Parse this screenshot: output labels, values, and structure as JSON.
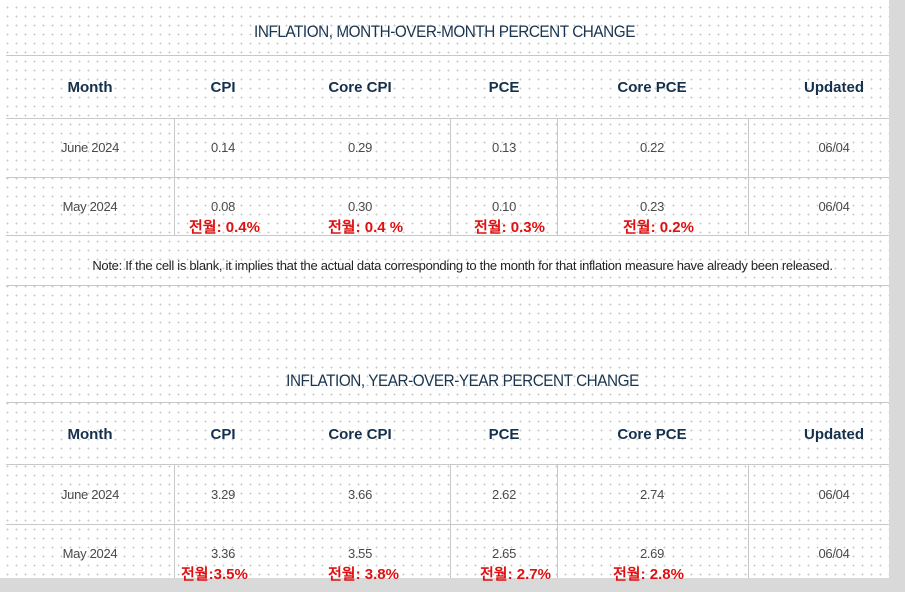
{
  "mom_table": {
    "title": "INFLATION, MONTH-OVER-MONTH PERCENT CHANGE",
    "headers": [
      "Month",
      "CPI",
      "Core CPI",
      "PCE",
      "Core PCE",
      "Updated"
    ],
    "rows": [
      [
        "June 2024",
        "0.14",
        "0.29",
        "0.13",
        "0.22",
        "06/04"
      ],
      [
        "May 2024",
        "0.08",
        "0.30",
        "0.10",
        "0.23",
        "06/04"
      ]
    ],
    "annotations": [
      "전월: 0.4%",
      "전월: 0.4 %",
      "전월: 0.3%",
      "전월: 0.2%"
    ],
    "note": "Note: If the cell is blank, it implies that the actual data corresponding to the month for that inflation measure have already been released."
  },
  "yoy_table": {
    "title": "INFLATION, YEAR-OVER-YEAR PERCENT CHANGE",
    "headers": [
      "Month",
      "CPI",
      "Core CPI",
      "PCE",
      "Core PCE",
      "Updated"
    ],
    "rows": [
      [
        "June 2024",
        "3.29",
        "3.66",
        "2.62",
        "2.74",
        "06/04"
      ],
      [
        "May 2024",
        "3.36",
        "3.55",
        "2.65",
        "2.69",
        "06/04"
      ]
    ],
    "annotations": [
      "전월:3.5%",
      "전월: 3.8%",
      "전월: 2.7%",
      "전월: 2.8%"
    ]
  },
  "colors": {
    "annotation_red": "#e01010",
    "header_navy": "#14304d",
    "title_navy": "#1a3550"
  }
}
